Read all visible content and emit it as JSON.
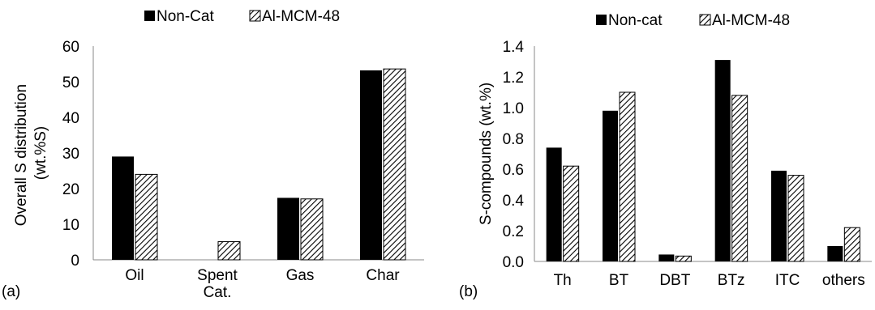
{
  "chart_data": [
    {
      "type": "bar",
      "panel_label": "(a)",
      "categories": [
        "Oil",
        "Spent Cat.",
        "Gas",
        "Char"
      ],
      "series": [
        {
          "name": "Non-Cat",
          "values": [
            29.0,
            0,
            17.4,
            53.2
          ],
          "pattern": "solid"
        },
        {
          "name": "Al-MCM-48",
          "values": [
            24.0,
            5.1,
            17.1,
            53.6
          ],
          "pattern": "hatch"
        }
      ],
      "ylabel": "Overall S distribution (wt.%S)",
      "ylabel_lines": [
        "Overall S distribution",
        "(wt.%S)"
      ],
      "ylim": [
        0,
        60
      ],
      "yticks": [
        "0",
        "10",
        "20",
        "30",
        "40",
        "50",
        "60"
      ],
      "legend_position": "top",
      "grid": false
    },
    {
      "type": "bar",
      "panel_label": "(b)",
      "categories": [
        "Th",
        "BT",
        "DBT",
        "BTz",
        "ITC",
        "others"
      ],
      "series": [
        {
          "name": "Non-cat",
          "values": [
            0.74,
            0.98,
            0.045,
            1.31,
            0.59,
            0.1
          ],
          "pattern": "solid"
        },
        {
          "name": "Al-MCM-48",
          "values": [
            0.62,
            1.1,
            0.035,
            1.08,
            0.56,
            0.22
          ],
          "pattern": "hatch"
        }
      ],
      "ylabel": "S-compounds (wt.%)",
      "ylim": [
        0,
        1.4
      ],
      "yticks": [
        "0.0",
        "0.2",
        "0.4",
        "0.6",
        "0.8",
        "1.0",
        "1.2",
        "1.4"
      ],
      "legend_position": "top",
      "grid": false
    }
  ],
  "colors": {
    "solid": "#000000",
    "hatch_line": "#000000",
    "axis": "#888888"
  }
}
